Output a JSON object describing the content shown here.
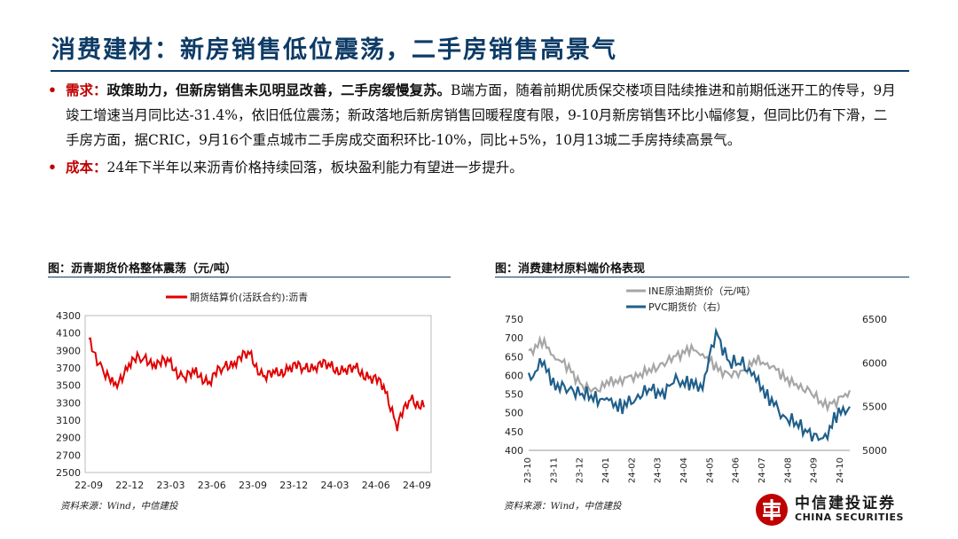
{
  "page": {
    "title": "消费建材：新房销售低位震荡，二手房销售高景气",
    "bullets": [
      {
        "label": "需求：",
        "bold_text": "政策助力，但新房销售未见明显改善，二手房缓慢复苏。",
        "text": "B端方面，随着前期优质保交楼项目陆续推进和前期低迷开工的传导，9月竣工增速当月同比达-31.4%，依旧低位震荡；新政落地后新房销售回暖程度有限，9-10月新房销售环比小幅修复，但同比仍有下滑，二手房方面，据CRIC，9月16个重点城市二手房成交面积环比-10%，同比+5%，10月13城二手房持续高景气。"
      },
      {
        "label": "成本：",
        "bold_text": "",
        "text": "24年下半年以来沥青价格持续回落，板块盈利能力有望进一步提升。"
      }
    ],
    "logo_cn": "中信建投证券",
    "logo_en": "CHINA SECURITIES",
    "colors": {
      "title": "#0d3b66",
      "accent_red": "#c00000",
      "pvc_blue": "#1f5f8b",
      "ine_gray": "#a6a6a6"
    }
  },
  "chart_data": [
    {
      "type": "line",
      "title": "图：沥青期货价格整体震荡（元/吨）",
      "source": "资料来源：Wind，中信建投",
      "legend": "top-right",
      "grid": false,
      "ylim": [
        2500,
        4300
      ],
      "yticks": [
        "2500",
        "2700",
        "2900",
        "3100",
        "3300",
        "3500",
        "3700",
        "3900",
        "4100",
        "4300"
      ],
      "xticks": [
        "22-09",
        "22-12",
        "23-03",
        "23-06",
        "23-09",
        "23-12",
        "24-03",
        "24-06",
        "24-09"
      ],
      "series": [
        {
          "name": "期货结算价(活跃合约):沥青",
          "color": "#e00000",
          "x": [
            "22-09",
            "22-10",
            "22-11",
            "22-12",
            "23-01",
            "23-02",
            "23-03",
            "23-04",
            "23-05",
            "23-06",
            "23-07",
            "23-08",
            "23-09",
            "23-10",
            "23-11",
            "23-12",
            "24-01",
            "24-02",
            "24-03",
            "24-04",
            "24-05",
            "24-06",
            "24-07",
            "24-08",
            "24-09",
            "24-10"
          ],
          "values": [
            4000,
            3700,
            3450,
            3780,
            3800,
            3770,
            3750,
            3600,
            3620,
            3560,
            3700,
            3800,
            3850,
            3600,
            3620,
            3720,
            3700,
            3740,
            3720,
            3660,
            3680,
            3590,
            3500,
            3050,
            3350,
            3250
          ]
        }
      ]
    },
    {
      "type": "line",
      "title": "图：消费建材原料端价格表现",
      "source": "资料来源：Wind，中信建投",
      "legend": "top-center",
      "grid": false,
      "ylim": [
        400,
        750
      ],
      "y2lim": [
        5000,
        6500
      ],
      "yticks": [
        "400",
        "450",
        "500",
        "550",
        "600",
        "650",
        "700",
        "750"
      ],
      "y2ticks": [
        "5000",
        "5500",
        "6000",
        "6500"
      ],
      "xticks": [
        "23-10",
        "23-11",
        "23-12",
        "24-01",
        "24-02",
        "24-03",
        "24-04",
        "24-05",
        "24-06",
        "24-07",
        "24-08",
        "24-09",
        "24-10"
      ],
      "series": [
        {
          "name": "INE原油期货价（元/吨）",
          "axis": "left",
          "color": "#a6a6a6",
          "x": [
            "23-10",
            "23-10b",
            "23-11",
            "23-11b",
            "23-12",
            "23-12b",
            "24-01",
            "24-01b",
            "24-02",
            "24-02b",
            "24-03",
            "24-03b",
            "24-04",
            "24-04b",
            "24-05",
            "24-05b",
            "24-06",
            "24-06b",
            "24-07",
            "24-07b",
            "24-08",
            "24-08b",
            "24-09",
            "24-09b",
            "24-10"
          ],
          "values": [
            660,
            690,
            650,
            620,
            570,
            560,
            580,
            590,
            600,
            610,
            630,
            650,
            670,
            660,
            620,
            600,
            610,
            640,
            630,
            600,
            570,
            560,
            520,
            530,
            560
          ]
        },
        {
          "name": "PVC期货价（右）",
          "axis": "right",
          "color": "#1f5f8b",
          "x": [
            "23-10",
            "23-10b",
            "23-11",
            "23-11b",
            "23-12",
            "23-12b",
            "24-01",
            "24-01b",
            "24-02",
            "24-02b",
            "24-03",
            "24-03b",
            "24-04",
            "24-04b",
            "24-05",
            "24-05b",
            "24-06",
            "24-06b",
            "24-07",
            "24-07b",
            "24-08",
            "24-08b",
            "24-09",
            "24-09b",
            "24-10"
          ],
          "values": [
            5800,
            6000,
            5750,
            5700,
            5650,
            5600,
            5550,
            5500,
            5600,
            5700,
            5650,
            5800,
            5750,
            5750,
            6350,
            6000,
            6000,
            5800,
            5600,
            5400,
            5300,
            5200,
            5100,
            5400,
            5500
          ]
        }
      ]
    }
  ]
}
